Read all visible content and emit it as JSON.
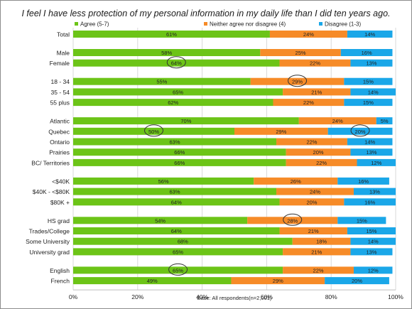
{
  "chart_data": {
    "type": "bar",
    "orientation": "horizontal",
    "stacked": true,
    "title": "I feel I have less protection of my personal information in my daily life than I did ten years ago.",
    "footnote": "Base: All respondents(n=2,001)",
    "legend_position": "top",
    "xlim": [
      0,
      100
    ],
    "x_ticks": [
      "0%",
      "20%",
      "40%",
      "60%",
      "80%",
      "100%"
    ],
    "grid": true,
    "series": [
      {
        "name": "Agree (5-7)",
        "color": "#6cc417"
      },
      {
        "name": "Neither agree nor disagree (4)",
        "color": "#f68b28"
      },
      {
        "name": "Disagree (1-3)",
        "color": "#1aa7e8"
      }
    ],
    "categories": [
      "Total",
      "Male",
      "Female",
      "18 - 34",
      "35 - 54",
      "55 plus",
      "Atlantic",
      "Quebec",
      "Ontario",
      "Prairies",
      "BC/ Territories",
      "<$40K",
      "$40K - <$80K",
      "$80K +",
      "HS grad",
      "Trades/College",
      "Some University",
      "University grad",
      "English",
      "French"
    ],
    "groups": [
      1,
      2,
      3,
      5,
      3,
      4,
      2
    ],
    "values": [
      [
        61,
        24,
        14
      ],
      [
        58,
        25,
        16
      ],
      [
        64,
        22,
        13
      ],
      [
        55,
        29,
        15
      ],
      [
        65,
        21,
        14
      ],
      [
        62,
        22,
        15
      ],
      [
        70,
        24,
        5
      ],
      [
        50,
        29,
        20
      ],
      [
        63,
        22,
        14
      ],
      [
        66,
        20,
        13
      ],
      [
        66,
        22,
        12
      ],
      [
        56,
        26,
        16
      ],
      [
        63,
        24,
        13
      ],
      [
        64,
        20,
        16
      ],
      [
        54,
        28,
        15
      ],
      [
        64,
        21,
        15
      ],
      [
        68,
        18,
        14
      ],
      [
        65,
        21,
        13
      ],
      [
        65,
        22,
        12
      ],
      [
        49,
        29,
        20
      ]
    ],
    "circled": [
      {
        "category": "Female",
        "series": 0
      },
      {
        "category": "18 - 34",
        "series": 1
      },
      {
        "category": "Quebec",
        "series": 0
      },
      {
        "category": "Quebec",
        "series": 2
      },
      {
        "category": "HS grad",
        "series": 1
      },
      {
        "category": "English",
        "series": 0
      }
    ]
  }
}
